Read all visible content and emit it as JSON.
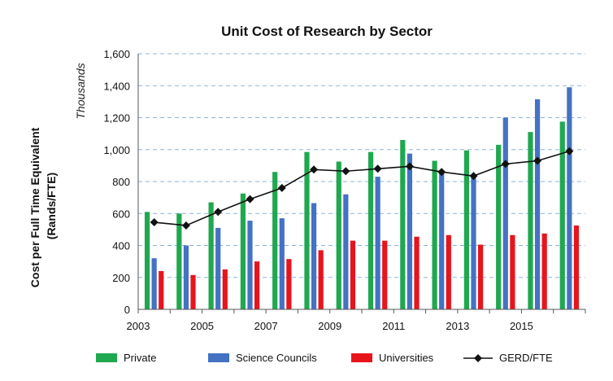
{
  "chart_data": {
    "type": "bar",
    "title": "Unit Cost of Research by Sector",
    "ylabel": "Cost per Full Time Equivalent (Rands/FTE)",
    "y_unit_label": "Thousands",
    "categories": [
      "2003",
      "2004",
      "2005",
      "2006",
      "2007",
      "2008",
      "2009",
      "2010",
      "2011",
      "2012",
      "2013",
      "2014",
      "2015",
      "2016"
    ],
    "x_tick_labels": [
      "2003",
      "2005",
      "2007",
      "2009",
      "2011",
      "2013",
      "2015"
    ],
    "ylim": [
      0,
      1600
    ],
    "y_ticks": [
      "0",
      "200",
      "400",
      "600",
      "800",
      "1,000",
      "1,200",
      "1,400",
      "1,600"
    ],
    "grid": true,
    "legend_position": "bottom",
    "series": [
      {
        "name": "Private",
        "type": "bar",
        "color": "#1fa84f",
        "values": [
          610,
          600,
          670,
          725,
          860,
          985,
          925,
          985,
          1060,
          930,
          995,
          1030,
          1110,
          1175
        ]
      },
      {
        "name": "Science Councils",
        "type": "bar",
        "color": "#4472c4",
        "values": [
          320,
          400,
          510,
          555,
          570,
          665,
          720,
          830,
          975,
          850,
          830,
          1200,
          1315,
          1390
        ]
      },
      {
        "name": "Universities",
        "type": "bar",
        "color": "#e8141c",
        "values": [
          240,
          215,
          250,
          300,
          315,
          370,
          430,
          430,
          455,
          465,
          405,
          465,
          475,
          525
        ]
      },
      {
        "name": "GERD/FTE",
        "type": "line",
        "color": "#111111",
        "values": [
          545,
          525,
          610,
          690,
          760,
          875,
          865,
          880,
          895,
          860,
          835,
          910,
          930,
          990
        ]
      }
    ]
  }
}
